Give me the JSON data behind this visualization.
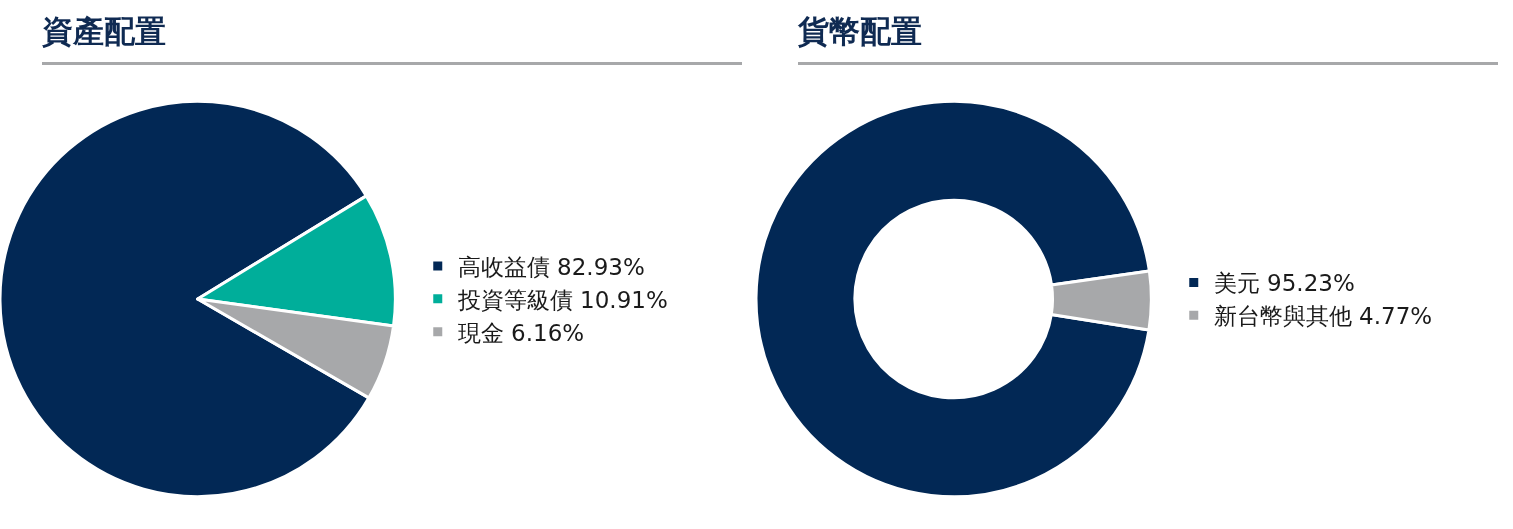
{
  "chart_data": [
    {
      "type": "pie",
      "title": "資產配置",
      "categories": [
        "高收益債",
        "投資等級債",
        "現金"
      ],
      "values": [
        82.93,
        10.91,
        6.16
      ],
      "colors": [
        "#022855",
        "#00ae9a",
        "#a7a8aa"
      ],
      "value_labels": [
        "82.93%",
        "10.91%",
        "6.16%"
      ],
      "legend": "right"
    },
    {
      "type": "donut",
      "title": "貨幣配置",
      "categories": [
        "美元",
        "新台幣與其他"
      ],
      "values": [
        95.23,
        4.77
      ],
      "colors": [
        "#022855",
        "#a7a8aa"
      ],
      "value_labels": [
        "95.23%",
        "4.77%"
      ],
      "legend": "right"
    }
  ]
}
